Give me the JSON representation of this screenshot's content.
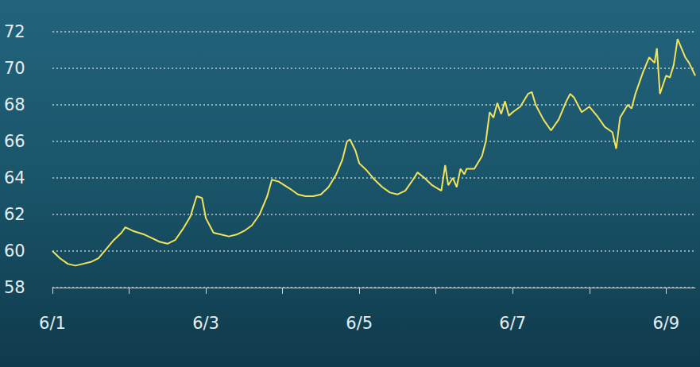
{
  "chart_data": {
    "type": "line",
    "color": "#f3e35a",
    "grid": true,
    "xlim": [
      1,
      9.38
    ],
    "xticks": [
      {
        "value": 1,
        "label": "6/1"
      },
      {
        "value": 3,
        "label": "6/3"
      },
      {
        "value": 5,
        "label": "6/5"
      },
      {
        "value": 7,
        "label": "6/7"
      },
      {
        "value": 9,
        "label": "6/9"
      }
    ],
    "ylim": [
      58,
      72
    ],
    "yticks": [
      58,
      60,
      62,
      64,
      66,
      68,
      70,
      72
    ],
    "x": [
      1.0,
      1.1,
      1.2,
      1.3,
      1.4,
      1.5,
      1.6,
      1.7,
      1.8,
      1.9,
      1.95,
      2.05,
      2.2,
      2.3,
      2.4,
      2.5,
      2.6,
      2.7,
      2.8,
      2.85,
      2.88,
      2.95,
      3.0,
      3.1,
      3.2,
      3.3,
      3.4,
      3.5,
      3.6,
      3.7,
      3.8,
      3.86,
      3.95,
      4.1,
      4.2,
      4.3,
      4.4,
      4.5,
      4.6,
      4.7,
      4.78,
      4.84,
      4.88,
      4.95,
      5.0,
      5.1,
      5.2,
      5.3,
      5.4,
      5.5,
      5.6,
      5.7,
      5.76,
      5.85,
      5.95,
      6.07,
      6.12,
      6.16,
      6.22,
      6.27,
      6.32,
      6.37,
      6.4,
      6.5,
      6.6,
      6.65,
      6.7,
      6.75,
      6.8,
      6.85,
      6.9,
      6.95,
      7.0,
      7.1,
      7.2,
      7.25,
      7.3,
      7.4,
      7.5,
      7.6,
      7.7,
      7.75,
      7.8,
      7.9,
      8.0,
      8.1,
      8.2,
      8.3,
      8.35,
      8.4,
      8.5,
      8.55,
      8.6,
      8.7,
      8.78,
      8.85,
      8.88,
      8.92,
      9.0,
      9.05,
      9.1,
      9.15,
      9.25,
      9.3,
      9.38
    ],
    "values": [
      60.0,
      59.6,
      59.3,
      59.2,
      59.3,
      59.4,
      59.6,
      60.1,
      60.6,
      61.0,
      61.3,
      61.1,
      60.9,
      60.7,
      60.5,
      60.4,
      60.6,
      61.2,
      61.9,
      62.6,
      63.0,
      62.9,
      61.8,
      61.0,
      60.9,
      60.8,
      60.9,
      61.1,
      61.4,
      62.0,
      63.0,
      63.9,
      63.8,
      63.4,
      63.1,
      63.0,
      63.0,
      63.1,
      63.5,
      64.2,
      65.0,
      66.0,
      66.1,
      65.5,
      64.8,
      64.4,
      63.9,
      63.5,
      63.2,
      63.1,
      63.3,
      63.9,
      64.3,
      64.0,
      63.6,
      63.3,
      64.7,
      63.6,
      64.0,
      63.5,
      64.5,
      64.2,
      64.5,
      64.5,
      65.2,
      66.0,
      67.6,
      67.3,
      68.1,
      67.5,
      68.2,
      67.4,
      67.6,
      67.9,
      68.6,
      68.7,
      68.0,
      67.2,
      66.6,
      67.2,
      68.2,
      68.6,
      68.4,
      67.6,
      67.9,
      67.4,
      66.8,
      66.5,
      65.6,
      67.3,
      68.0,
      67.8,
      68.6,
      69.8,
      70.6,
      70.3,
      71.1,
      68.6,
      69.6,
      69.5,
      70.2,
      71.6,
      70.6,
      70.3,
      69.6
    ]
  }
}
